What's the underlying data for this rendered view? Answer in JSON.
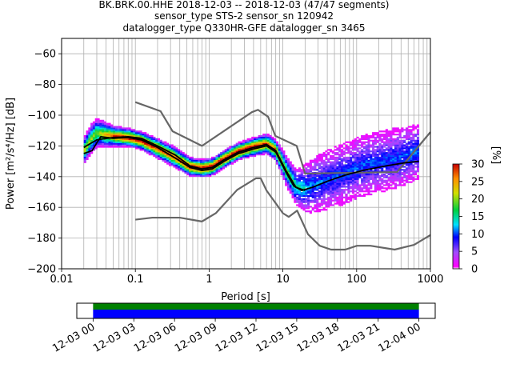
{
  "title_lines": [
    "BK.BRK.00.HHE   2018-12-03 -- 2018-12-03  (47/47 segments)",
    "sensor_type STS-2 sensor_sn 120942",
    "datalogger_type Q330HR-GFE datalogger_sn 3465"
  ],
  "chart_data": [
    {
      "type": "heatmap",
      "title": "BK.BRK.00.HHE   2018-12-03 -- 2018-12-03  (47/47 segments)",
      "xlabel": "Period [s]",
      "ylabel": "Power [m²/s⁴/Hz] [dB]",
      "xscale": "log",
      "xlim": [
        0.01,
        1000
      ],
      "ylim": [
        -200,
        -50
      ],
      "xticks": [
        "0.01",
        "0.1",
        "1",
        "10",
        "100",
        "1000"
      ],
      "yticks": [
        "−200",
        "−180",
        "−160",
        "−140",
        "−120",
        "−100",
        "−80",
        "−60"
      ],
      "grid": true,
      "colorbar": {
        "label": "[%]",
        "min": 0,
        "max": 30,
        "ticks": [
          "0",
          "5",
          "10",
          "15",
          "20",
          "25",
          "30"
        ]
      },
      "series": [
        {
          "role": "high noise model",
          "color": "#666666",
          "points": [
            [
              0.1,
              -91.5
            ],
            [
              0.22,
              -97.4
            ],
            [
              0.32,
              -110.5
            ],
            [
              0.8,
              -120
            ],
            [
              3.8,
              -98
            ],
            [
              4.6,
              -96.5
            ],
            [
              6.3,
              -101
            ],
            [
              7.9,
              -113.5
            ],
            [
              15.4,
              -120
            ],
            [
              20,
              -138
            ],
            [
              354,
              -137
            ],
            [
              1000,
              -111
            ]
          ]
        },
        {
          "role": "low noise model",
          "color": "#666666",
          "points": [
            [
              0.1,
              -168
            ],
            [
              0.17,
              -166.7
            ],
            [
              0.4,
              -166.7
            ],
            [
              0.8,
              -169.2
            ],
            [
              1.24,
              -163.7
            ],
            [
              2.4,
              -148.6
            ],
            [
              4.3,
              -141.1
            ],
            [
              5.0,
              -141.1
            ],
            [
              6.0,
              -149
            ],
            [
              10,
              -163.8
            ],
            [
              12,
              -166.2
            ],
            [
              15.6,
              -162.1
            ],
            [
              21.9,
              -177.5
            ],
            [
              31.6,
              -185
            ],
            [
              45,
              -187.5
            ],
            [
              70,
              -187.5
            ],
            [
              101,
              -185
            ],
            [
              154,
              -185
            ],
            [
              328,
              -187.5
            ],
            [
              600,
              -184.4
            ],
            [
              1000,
              -178
            ]
          ]
        },
        {
          "role": "mean",
          "color": "#000000",
          "points": [
            [
              0.02,
              -125
            ],
            [
              0.026,
              -123
            ],
            [
              0.03,
              -118
            ],
            [
              0.034,
              -114
            ],
            [
              0.05,
              -115
            ],
            [
              0.08,
              -114.5
            ],
            [
              0.12,
              -116
            ],
            [
              0.2,
              -121
            ],
            [
              0.35,
              -128
            ],
            [
              0.55,
              -134
            ],
            [
              0.8,
              -136
            ],
            [
              1.1,
              -135
            ],
            [
              1.6,
              -130
            ],
            [
              2.5,
              -125
            ],
            [
              4,
              -122
            ],
            [
              6,
              -120
            ],
            [
              8,
              -124
            ],
            [
              11,
              -137
            ],
            [
              14,
              -146
            ],
            [
              18,
              -149
            ],
            [
              25,
              -147
            ],
            [
              40,
              -143
            ],
            [
              70,
              -139
            ],
            [
              120,
              -136
            ],
            [
              250,
              -133
            ],
            [
              450,
              -131
            ],
            [
              700,
              -130
            ]
          ]
        },
        {
          "role": "mode",
          "color": "#000000",
          "points": [
            [
              0.02,
              -121
            ],
            [
              0.03,
              -116
            ],
            [
              0.05,
              -114.5
            ],
            [
              0.08,
              -114
            ],
            [
              0.12,
              -115
            ],
            [
              0.2,
              -120
            ],
            [
              0.35,
              -126
            ],
            [
              0.55,
              -133
            ],
            [
              0.8,
              -135
            ],
            [
              1.1,
              -134
            ],
            [
              1.6,
              -129
            ],
            [
              2.5,
              -124
            ],
            [
              4,
              -121
            ],
            [
              6,
              -119
            ],
            [
              8,
              -123
            ],
            [
              11,
              -136
            ],
            [
              15,
              -147
            ],
            [
              20,
              -149
            ]
          ]
        }
      ],
      "histogram_peak": [
        [
          0.02,
          -124
        ],
        [
          0.025,
          -116
        ],
        [
          0.03,
          -112
        ],
        [
          0.05,
          -114
        ],
        [
          0.08,
          -115
        ],
        [
          0.12,
          -117
        ],
        [
          0.2,
          -122
        ],
        [
          0.35,
          -128
        ],
        [
          0.55,
          -134
        ],
        [
          0.8,
          -135
        ],
        [
          1.1,
          -134
        ],
        [
          1.6,
          -129
        ],
        [
          2.5,
          -124
        ],
        [
          4,
          -121
        ],
        [
          6,
          -119
        ],
        [
          8,
          -123
        ],
        [
          11,
          -136
        ],
        [
          15,
          -147
        ],
        [
          20,
          -148
        ],
        [
          30,
          -145
        ],
        [
          50,
          -141
        ],
        [
          80,
          -137
        ],
        [
          130,
          -133
        ],
        [
          250,
          -130
        ],
        [
          450,
          -127
        ],
        [
          700,
          -124
        ]
      ],
      "histogram_spread": [
        [
          0.02,
          9
        ],
        [
          0.03,
          10
        ],
        [
          0.05,
          7
        ],
        [
          0.1,
          6
        ],
        [
          0.3,
          7
        ],
        [
          0.8,
          6
        ],
        [
          3,
          6
        ],
        [
          8,
          7
        ],
        [
          11,
          10
        ],
        [
          15,
          12
        ],
        [
          25,
          18
        ],
        [
          50,
          20
        ],
        [
          100,
          20
        ],
        [
          300,
          20
        ],
        [
          700,
          18
        ]
      ]
    },
    {
      "type": "timeline",
      "xticks": [
        "12-03 00",
        "12-03 03",
        "12-03 06",
        "12-03 09",
        "12-03 12",
        "12-03 15",
        "12-03 18",
        "12-03 21",
        "12-04 00"
      ],
      "xlim_hours": [
        -1.2,
        25.2
      ],
      "coverage_hours": [
        0,
        24
      ],
      "bands": [
        {
          "color": "#008000"
        },
        {
          "color": "#0000ff"
        }
      ]
    }
  ]
}
